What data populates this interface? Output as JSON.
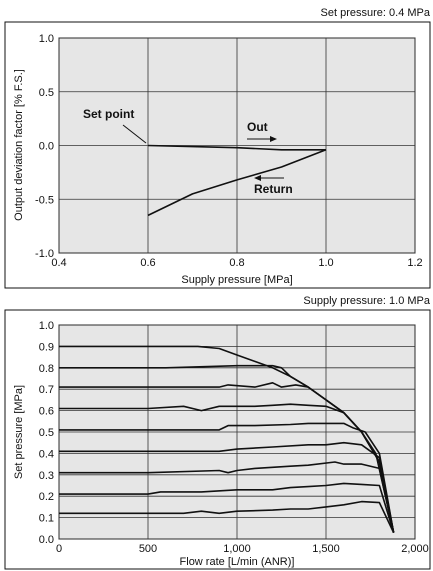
{
  "figure_top": {
    "header": "Set pressure: 0.4 MPa",
    "annotations": {
      "set_point": "Set point",
      "out": "Out",
      "return": "Return"
    }
  },
  "figure_bottom": {
    "header": "Supply pressure: 1.0 MPa"
  },
  "colors": {
    "plot_bg": "#e6e6e6",
    "line": "#111111",
    "grid": "#333333"
  },
  "chart_data": [
    {
      "type": "line",
      "title": "Set pressure: 0.4 MPa",
      "xlabel": "Supply pressure [MPa]",
      "ylabel": "Output deviation factor [% F.S.]",
      "xlim": [
        0.4,
        1.2
      ],
      "ylim": [
        -1.0,
        1.0
      ],
      "xticks": [
        "0.4",
        "0.6",
        "0.8",
        "1.0",
        "1.2"
      ],
      "yticks": [
        "1.0",
        "0.5",
        "0.0",
        "-0.5",
        "-1.0"
      ],
      "grid": true,
      "series": [
        {
          "name": "Out",
          "points": [
            [
              0.6,
              0.0
            ],
            [
              0.7,
              -0.01
            ],
            [
              0.8,
              -0.02
            ],
            [
              0.9,
              -0.04
            ],
            [
              1.0,
              -0.04
            ]
          ]
        },
        {
          "name": "Return",
          "points": [
            [
              1.0,
              -0.04
            ],
            [
              0.9,
              -0.2
            ],
            [
              0.8,
              -0.32
            ],
            [
              0.7,
              -0.45
            ],
            [
              0.6,
              -0.65
            ]
          ]
        }
      ]
    },
    {
      "type": "line",
      "title": "Supply pressure: 1.0 MPa",
      "xlabel": "Flow rate [L/min (ANR)]",
      "ylabel": "Set pressure [MPa]",
      "xlim": [
        0,
        2000
      ],
      "ylim": [
        0.0,
        1.0
      ],
      "xticks": [
        "0",
        "500",
        "1,000",
        "1,500",
        "2,000"
      ],
      "yticks": [
        "1.0",
        "0.9",
        "0.8",
        "0.7",
        "0.6",
        "0.5",
        "0.4",
        "0.3",
        "0.2",
        "0.1",
        "0.0"
      ],
      "grid": true,
      "series": [
        {
          "points": [
            [
              0,
              0.9
            ],
            [
              780,
              0.9
            ],
            [
              900,
              0.89
            ],
            [
              1000,
              0.86
            ],
            [
              1100,
              0.83
            ],
            [
              1200,
              0.8
            ],
            [
              1300,
              0.76
            ],
            [
              1400,
              0.71
            ],
            [
              1500,
              0.65
            ],
            [
              1600,
              0.59
            ],
            [
              1700,
              0.5
            ],
            [
              1800,
              0.36
            ],
            [
              1880,
              0.03
            ]
          ]
        },
        {
          "points": [
            [
              0,
              0.8
            ],
            [
              600,
              0.8
            ],
            [
              1000,
              0.81
            ],
            [
              1200,
              0.81
            ],
            [
              1250,
              0.8
            ],
            [
              1300,
              0.76
            ],
            [
              1400,
              0.71
            ],
            [
              1500,
              0.65
            ],
            [
              1600,
              0.59
            ],
            [
              1700,
              0.5
            ],
            [
              1800,
              0.36
            ],
            [
              1880,
              0.03
            ]
          ]
        },
        {
          "points": [
            [
              0,
              0.71
            ],
            [
              900,
              0.71
            ],
            [
              950,
              0.72
            ],
            [
              1100,
              0.71
            ],
            [
              1200,
              0.73
            ],
            [
              1250,
              0.71
            ],
            [
              1330,
              0.72
            ],
            [
              1400,
              0.71
            ],
            [
              1500,
              0.65
            ],
            [
              1600,
              0.59
            ],
            [
              1700,
              0.5
            ],
            [
              1800,
              0.36
            ],
            [
              1880,
              0.03
            ]
          ]
        },
        {
          "points": [
            [
              0,
              0.61
            ],
            [
              500,
              0.61
            ],
            [
              700,
              0.62
            ],
            [
              800,
              0.6
            ],
            [
              900,
              0.62
            ],
            [
              1000,
              0.62
            ],
            [
              1100,
              0.62
            ],
            [
              1200,
              0.625
            ],
            [
              1300,
              0.63
            ],
            [
              1400,
              0.625
            ],
            [
              1500,
              0.62
            ],
            [
              1600,
              0.59
            ],
            [
              1700,
              0.5
            ],
            [
              1780,
              0.4
            ],
            [
              1880,
              0.03
            ]
          ]
        },
        {
          "points": [
            [
              0,
              0.51
            ],
            [
              500,
              0.51
            ],
            [
              900,
              0.51
            ],
            [
              950,
              0.53
            ],
            [
              1100,
              0.53
            ],
            [
              1300,
              0.535
            ],
            [
              1400,
              0.54
            ],
            [
              1500,
              0.54
            ],
            [
              1600,
              0.54
            ],
            [
              1650,
              0.52
            ],
            [
              1720,
              0.5
            ],
            [
              1800,
              0.4
            ],
            [
              1880,
              0.03
            ]
          ]
        },
        {
          "points": [
            [
              0,
              0.41
            ],
            [
              500,
              0.41
            ],
            [
              900,
              0.41
            ],
            [
              1000,
              0.42
            ],
            [
              1200,
              0.43
            ],
            [
              1400,
              0.44
            ],
            [
              1500,
              0.44
            ],
            [
              1600,
              0.45
            ],
            [
              1700,
              0.44
            ],
            [
              1800,
              0.38
            ],
            [
              1880,
              0.03
            ]
          ]
        },
        {
          "points": [
            [
              0,
              0.31
            ],
            [
              500,
              0.31
            ],
            [
              900,
              0.32
            ],
            [
              950,
              0.31
            ],
            [
              1000,
              0.32
            ],
            [
              1100,
              0.33
            ],
            [
              1300,
              0.34
            ],
            [
              1400,
              0.345
            ],
            [
              1550,
              0.36
            ],
            [
              1600,
              0.35
            ],
            [
              1700,
              0.35
            ],
            [
              1800,
              0.33
            ],
            [
              1880,
              0.03
            ]
          ]
        },
        {
          "points": [
            [
              0,
              0.21
            ],
            [
              500,
              0.21
            ],
            [
              570,
              0.22
            ],
            [
              800,
              0.22
            ],
            [
              1000,
              0.23
            ],
            [
              1200,
              0.23
            ],
            [
              1300,
              0.24
            ],
            [
              1400,
              0.245
            ],
            [
              1500,
              0.25
            ],
            [
              1600,
              0.26
            ],
            [
              1700,
              0.255
            ],
            [
              1800,
              0.25
            ],
            [
              1880,
              0.03
            ]
          ]
        },
        {
          "points": [
            [
              0,
              0.12
            ],
            [
              500,
              0.12
            ],
            [
              700,
              0.12
            ],
            [
              800,
              0.13
            ],
            [
              900,
              0.12
            ],
            [
              1000,
              0.13
            ],
            [
              1200,
              0.135
            ],
            [
              1300,
              0.14
            ],
            [
              1400,
              0.14
            ],
            [
              1500,
              0.15
            ],
            [
              1600,
              0.16
            ],
            [
              1700,
              0.175
            ],
            [
              1800,
              0.17
            ],
            [
              1880,
              0.03
            ]
          ]
        }
      ]
    }
  ]
}
